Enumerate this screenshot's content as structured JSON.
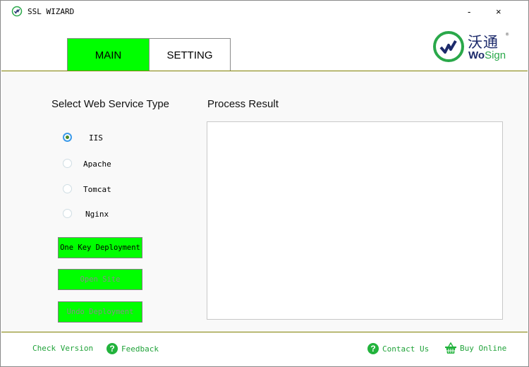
{
  "window": {
    "title": "SSL WIZARD",
    "minimize": "-",
    "close": "×"
  },
  "logo": {
    "chinese": "沃通",
    "wo": "Wo",
    "sign": "Sign",
    "registered": "®"
  },
  "tabs": [
    {
      "label": "MAIN",
      "active": true
    },
    {
      "label": "SETTING",
      "active": false
    }
  ],
  "left": {
    "heading": "Select Web Service Type",
    "options": [
      {
        "label": "IIS",
        "selected": true
      },
      {
        "label": "Apache",
        "selected": false
      },
      {
        "label": "Tomcat",
        "selected": false
      },
      {
        "label": "Nginx",
        "selected": false
      }
    ],
    "buttons": [
      {
        "label": "One Key Deployment",
        "enabled": true
      },
      {
        "label": "Open Site",
        "enabled": false
      },
      {
        "label": "Undo Deployment",
        "enabled": false
      }
    ]
  },
  "right": {
    "heading": "Process Result",
    "result": ""
  },
  "footer": {
    "check_version": "Check Version",
    "feedback": "Feedback",
    "contact_us": "Contact Us",
    "buy_online": "Buy Online"
  },
  "colors": {
    "accent": "#00ff00",
    "link": "#21a33a",
    "divider": "#808000"
  }
}
